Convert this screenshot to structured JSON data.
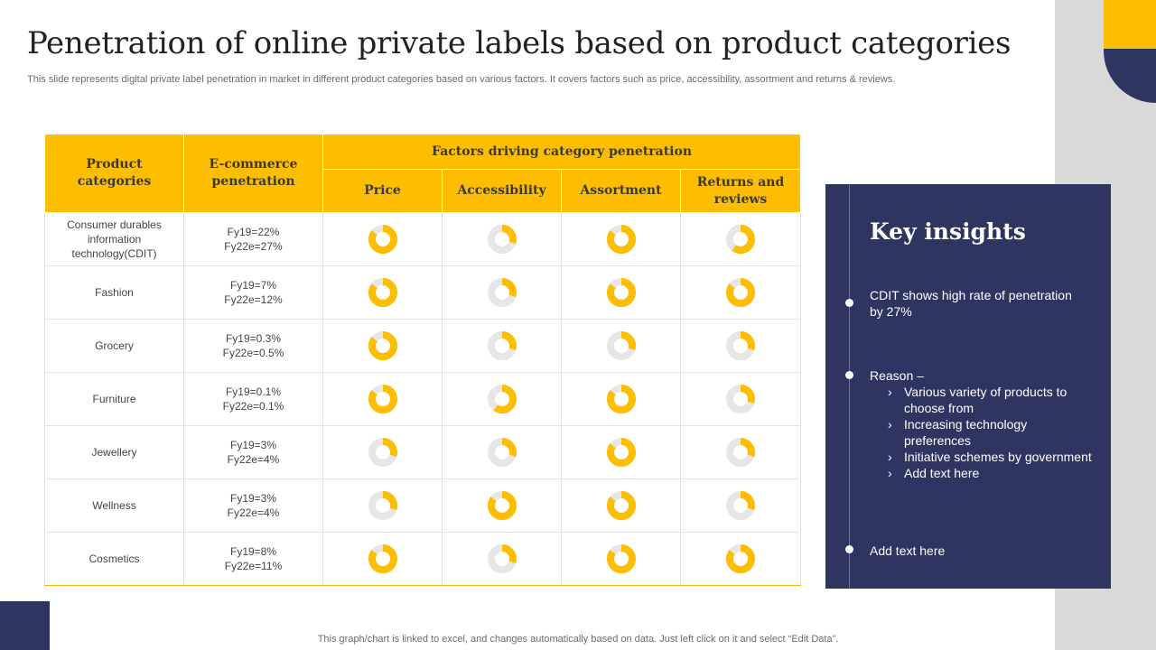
{
  "slide": {
    "title": "Penetration of online private labels based on product categories",
    "subtitle": "This slide represents digital private label penetration in market in different product categories based on various factors. It covers factors such as price, accessibility, assortment and returns & reviews.",
    "footer": "This graph/chart is linked to excel,  and changes automatically based on data. Just left click on it and select “Edit Data”."
  },
  "colors": {
    "accent": "#fdbd00",
    "navy": "#2e3561",
    "ring": "#e6e6e6"
  },
  "table": {
    "headers": {
      "category": "Product categories",
      "ecommerce": "E-commerce penetration",
      "factors": "Factors driving category penetration",
      "price": "Price",
      "accessibility": "Accessibility",
      "assortment": "Assortment",
      "returns": "Returns and reviews"
    },
    "rows": [
      {
        "category": "Consumer durables information technology(CDIT)",
        "fy19": "Fy19=22%",
        "fy22": "Fy22e=27%",
        "price": 0.85,
        "accessibility": 0.3,
        "assortment": 0.85,
        "returns": 0.6
      },
      {
        "category": "Fashion",
        "fy19": "Fy19=7%",
        "fy22": "Fy22e=12%",
        "price": 0.85,
        "accessibility": 0.3,
        "assortment": 0.85,
        "returns": 0.85
      },
      {
        "category": "Grocery",
        "fy19": "Fy19=0.3%",
        "fy22": "Fy22e=0.5%",
        "price": 0.85,
        "accessibility": 0.3,
        "assortment": 0.3,
        "returns": 0.3
      },
      {
        "category": "Furniture",
        "fy19": "Fy19=0.1%",
        "fy22": "Fy22e=0.1%",
        "price": 0.85,
        "accessibility": 0.6,
        "assortment": 0.85,
        "returns": 0.3
      },
      {
        "category": "Jewellery",
        "fy19": "Fy19=3%",
        "fy22": "Fy22e=4%",
        "price": 0.3,
        "accessibility": 0.3,
        "assortment": 0.85,
        "returns": 0.3
      },
      {
        "category": "Wellness",
        "fy19": "Fy19=3%",
        "fy22": "Fy22e=4%",
        "price": 0.3,
        "accessibility": 0.85,
        "assortment": 0.85,
        "returns": 0.3
      },
      {
        "category": "Cosmetics",
        "fy19": "Fy19=8%",
        "fy22": "Fy22e=11%",
        "price": 0.85,
        "accessibility": 0.3,
        "assortment": 0.85,
        "returns": 0.85
      }
    ]
  },
  "insights": {
    "title": "Key insights",
    "point1": "CDIT shows high rate of penetration by 27%",
    "reason_label": "Reason –",
    "chevron": "›",
    "reasons": [
      "Various variety of products to choose from",
      "Increasing technology preferences",
      "Initiative schemes by government",
      "Add text here"
    ],
    "point3": "Add text here"
  }
}
